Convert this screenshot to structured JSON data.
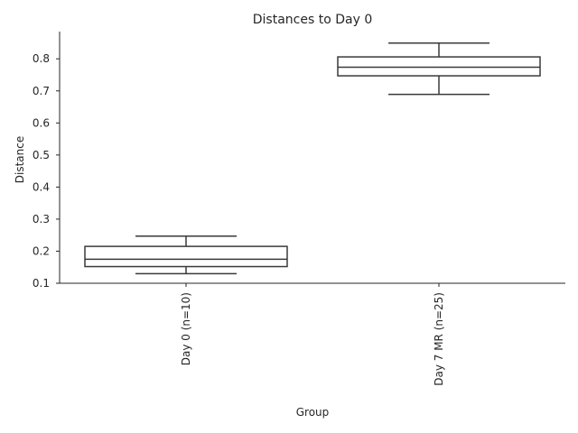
{
  "chart_data": {
    "type": "box",
    "title": "Distances to Day 0",
    "xlabel": "Group",
    "ylabel": "Distance",
    "ylim": [
      0.1,
      0.885
    ],
    "yticks": [
      0.1,
      0.2,
      0.3,
      0.4,
      0.5,
      0.6,
      0.7,
      0.8
    ],
    "ytick_labels": [
      "0.1",
      "0.2",
      "0.3",
      "0.4",
      "0.5",
      "0.6",
      "0.7",
      "0.8"
    ],
    "grid": false,
    "categories": [
      "Day 0 (n=10)",
      "Day 7 MR (n=25)"
    ],
    "boxes": [
      {
        "whisker_low": 0.13,
        "q1": 0.152,
        "median": 0.175,
        "q3": 0.215,
        "whisker_high": 0.247
      },
      {
        "whisker_low": 0.689,
        "q1": 0.747,
        "median": 0.774,
        "q3": 0.806,
        "whisker_high": 0.849
      }
    ],
    "line_color": "#3a3a3a",
    "box_fill": "#ffffff"
  }
}
